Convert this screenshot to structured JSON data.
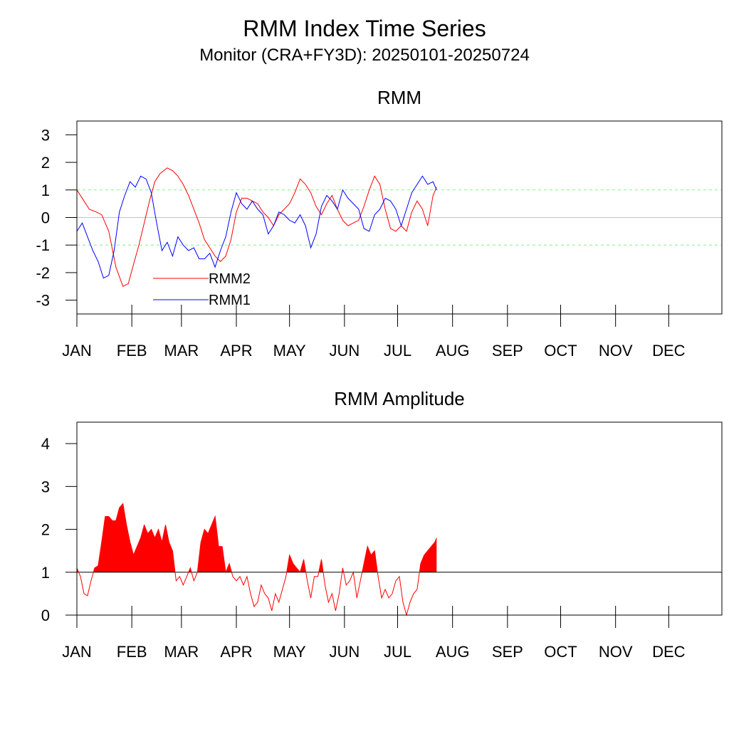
{
  "title": "RMM Index Time Series",
  "subtitle": "Monitor (CRA+FY3D): 20250101-20250724",
  "colors": {
    "rmm1": "#0000ff",
    "rmm2": "#ff0000",
    "zero_line": "#88ee88",
    "ref_line": "#88ee88",
    "amp_fill": "#ff0000",
    "amp_line": "#ff0000"
  },
  "chart_data": [
    {
      "type": "line",
      "title": "RMM",
      "x_units": "day of 2025",
      "xlim": [
        1,
        365
      ],
      "ylim": [
        -3.5,
        3.5
      ],
      "yticks": [
        -3,
        -2,
        -1,
        0,
        1,
        2,
        3
      ],
      "month_labels": [
        "JAN",
        "FEB",
        "MAR",
        "APR",
        "MAY",
        "JUN",
        "JUL",
        "AUG",
        "SEP",
        "OCT",
        "NOV",
        "DEC"
      ],
      "month_starts": [
        1,
        32,
        60,
        91,
        121,
        152,
        182,
        213,
        244,
        274,
        305,
        335
      ],
      "reference_lines": [
        {
          "y": 1,
          "style": "dashed"
        },
        {
          "y": 0,
          "style": "solid"
        },
        {
          "y": -1,
          "style": "dashed"
        }
      ],
      "legend_position": "bottom-left",
      "series": [
        {
          "name": "RMM2",
          "x": [
            1,
            5,
            8,
            12,
            15,
            19,
            23,
            27,
            30,
            33,
            36,
            39,
            42,
            45,
            48,
            52,
            55,
            58,
            61,
            64,
            67,
            70,
            73,
            76,
            79,
            82,
            85,
            88,
            91,
            94,
            97,
            100,
            103,
            106,
            109,
            112,
            115,
            118,
            121,
            124,
            127,
            130,
            133,
            136,
            139,
            142,
            145,
            148,
            151,
            154,
            157,
            160,
            163,
            166,
            169,
            172,
            175,
            178,
            181,
            184,
            187,
            190,
            193,
            196,
            199,
            202,
            204
          ],
          "y": [
            1.0,
            0.6,
            0.3,
            0.2,
            0.1,
            -0.5,
            -1.8,
            -2.5,
            -2.4,
            -1.7,
            -1.0,
            -0.2,
            0.6,
            1.3,
            1.6,
            1.8,
            1.7,
            1.5,
            1.2,
            0.8,
            0.3,
            -0.2,
            -0.8,
            -1.1,
            -1.4,
            -1.6,
            -1.4,
            -0.8,
            0.2,
            0.7,
            0.7,
            0.6,
            0.5,
            0.2,
            0.0,
            -0.3,
            0.1,
            0.3,
            0.5,
            0.9,
            1.4,
            1.2,
            0.9,
            0.4,
            0.1,
            0.5,
            0.8,
            0.3,
            -0.1,
            -0.3,
            -0.2,
            -0.1,
            0.4,
            1.0,
            1.5,
            1.2,
            0.3,
            -0.4,
            -0.5,
            -0.3,
            -0.5,
            0.2,
            0.6,
            0.3,
            -0.3,
            0.8,
            1.1
          ]
        },
        {
          "name": "RMM1",
          "x": [
            1,
            4,
            7,
            10,
            13,
            16,
            19,
            22,
            25,
            28,
            31,
            34,
            37,
            40,
            43,
            46,
            49,
            52,
            55,
            58,
            61,
            64,
            67,
            70,
            73,
            76,
            79,
            82,
            85,
            88,
            91,
            94,
            97,
            100,
            103,
            106,
            109,
            112,
            115,
            118,
            121,
            124,
            127,
            130,
            133,
            136,
            139,
            142,
            145,
            148,
            151,
            154,
            157,
            160,
            163,
            166,
            169,
            172,
            175,
            178,
            181,
            184,
            187,
            190,
            193,
            196,
            199,
            202,
            204
          ],
          "y": [
            -0.5,
            -0.2,
            -0.7,
            -1.2,
            -1.6,
            -2.2,
            -2.1,
            -1.2,
            0.2,
            0.8,
            1.3,
            1.1,
            1.5,
            1.4,
            0.9,
            -0.2,
            -1.2,
            -0.9,
            -1.4,
            -0.7,
            -1.0,
            -1.2,
            -1.1,
            -1.5,
            -1.5,
            -1.3,
            -1.8,
            -1.2,
            -0.7,
            0.2,
            0.9,
            0.5,
            0.3,
            0.6,
            0.3,
            0.1,
            -0.6,
            -0.3,
            0.2,
            0.1,
            -0.1,
            -0.2,
            0.1,
            -0.3,
            -1.1,
            -0.6,
            0.4,
            0.8,
            0.6,
            0.3,
            1.0,
            0.7,
            0.5,
            0.3,
            -0.4,
            -0.5,
            0.1,
            0.3,
            0.7,
            0.6,
            0.3,
            -0.3,
            0.3,
            0.9,
            1.2,
            1.5,
            1.2,
            1.3,
            1.0
          ]
        }
      ]
    },
    {
      "type": "area",
      "title": "RMM Amplitude",
      "x_units": "day of 2025",
      "xlim": [
        1,
        365
      ],
      "ylim": [
        0,
        4.5
      ],
      "yticks": [
        0,
        1,
        2,
        3,
        4
      ],
      "month_labels": [
        "JAN",
        "FEB",
        "MAR",
        "APR",
        "MAY",
        "JUN",
        "JUL",
        "AUG",
        "SEP",
        "OCT",
        "NOV",
        "DEC"
      ],
      "month_starts": [
        1,
        32,
        60,
        91,
        121,
        152,
        182,
        213,
        244,
        274,
        305,
        335
      ],
      "threshold": 1,
      "fill_above_threshold": true,
      "series": [
        {
          "name": "",
          "x": [
            1,
            3,
            5,
            7,
            9,
            11,
            13,
            15,
            17,
            19,
            21,
            23,
            25,
            27,
            29,
            31,
            33,
            35,
            37,
            39,
            41,
            43,
            45,
            47,
            49,
            51,
            53,
            55,
            57,
            59,
            61,
            63,
            65,
            67,
            69,
            71,
            73,
            75,
            77,
            79,
            81,
            83,
            85,
            87,
            89,
            91,
            93,
            95,
            97,
            99,
            101,
            103,
            105,
            107,
            109,
            111,
            113,
            115,
            117,
            119,
            121,
            123,
            125,
            127,
            129,
            131,
            133,
            135,
            137,
            139,
            141,
            143,
            145,
            147,
            149,
            151,
            153,
            155,
            157,
            159,
            161,
            163,
            165,
            167,
            169,
            171,
            173,
            175,
            177,
            179,
            181,
            183,
            185,
            187,
            189,
            191,
            193,
            195,
            197,
            199,
            201,
            203,
            204
          ],
          "y": [
            1.1,
            0.9,
            0.5,
            0.45,
            0.8,
            1.1,
            1.15,
            1.7,
            2.3,
            2.3,
            2.2,
            2.2,
            2.5,
            2.6,
            2.1,
            1.7,
            1.4,
            1.6,
            1.8,
            2.1,
            1.9,
            2.0,
            1.8,
            2.0,
            1.7,
            2.1,
            1.7,
            1.5,
            0.8,
            0.9,
            0.7,
            0.9,
            1.1,
            0.8,
            1.0,
            1.7,
            2.0,
            1.9,
            2.1,
            2.3,
            1.6,
            1.6,
            1.0,
            1.2,
            0.9,
            0.8,
            0.9,
            0.7,
            0.9,
            0.5,
            0.2,
            0.3,
            0.7,
            0.5,
            0.4,
            0.1,
            0.5,
            0.3,
            0.6,
            0.9,
            1.4,
            1.2,
            1.1,
            1.0,
            1.3,
            0.8,
            0.4,
            0.9,
            0.9,
            1.3,
            0.7,
            0.3,
            0.5,
            0.1,
            0.5,
            1.1,
            0.7,
            0.8,
            1.0,
            0.4,
            0.8,
            1.2,
            1.6,
            1.4,
            1.5,
            0.9,
            0.4,
            0.6,
            0.4,
            0.5,
            0.8,
            0.9,
            0.3,
            0.0,
            0.3,
            0.5,
            0.6,
            1.2,
            1.4,
            1.5,
            1.6,
            1.7,
            1.8
          ]
        }
      ]
    }
  ]
}
